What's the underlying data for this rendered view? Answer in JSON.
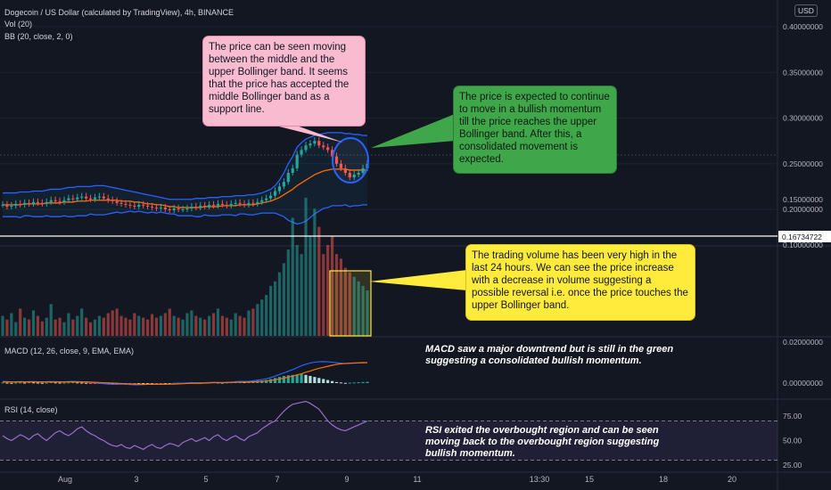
{
  "header": {
    "title": "Dogecoin / US Dollar (calculated by TradingView), 4h, BINANCE",
    "vol_label": "Vol (20)",
    "bb_label": "BB (20, close, 2, 0)",
    "currency": "USD"
  },
  "price_axis": {
    "ticks": [
      "0.40000000",
      "0.35000000",
      "0.30000000",
      "0.25000000",
      "0.20000000"
    ],
    "last_price": "0.16734722"
  },
  "volume_axis": {
    "ticks": [
      "0.15000000",
      "0.10000000"
    ]
  },
  "macd": {
    "label": "MACD (12, 26, close, 9, EMA, EMA)",
    "ticks": [
      "0.02000000",
      "0.00000000"
    ]
  },
  "rsi": {
    "label": "RSI (14, close)",
    "ticks": [
      "75.00",
      "50.00",
      "25.00"
    ]
  },
  "time_axis": [
    "Aug",
    "3",
    "5",
    "7",
    "9",
    "11",
    "13:30",
    "15",
    "18",
    "20"
  ],
  "annotations": {
    "pink": "The price can be seen moving between the middle and the upper Bollinger band. It seems that the price has accepted the middle Bollinger band as a support line.",
    "green": "The price is expected to continue to move in a bullish momentum till the price reaches the upper Bollinger band. After this, a consolidated movement is expected.",
    "yellow": "The trading volume has been very high in the last 24 hours. We can see the price increase with a decrease in volume suggesting a possible reversal i.e. once the price touches the upper Bollinger band.",
    "macd": "MACD saw a major downtrend but is still in the green suggesting a consolidated bullish momentum.",
    "rsi": "RSI exited the overbought region and can be seen moving back to the overbought region suggesting bullish momentum."
  },
  "colors": {
    "up": "#26a69a",
    "down": "#ef5350",
    "bb_upper": "#2962ff",
    "bb_basis": "#ff6d00",
    "rsi_line": "#9c6fc8"
  },
  "chart_data": [
    {
      "type": "candlestick",
      "title": "Dogecoin / US Dollar (calculated by TradingView), 4h, BINANCE",
      "ylim": [
        0.17,
        0.41
      ],
      "x_ticks": [
        "Aug",
        "3",
        "5",
        "7",
        "9",
        "11",
        "13:30",
        "15",
        "18",
        "20"
      ],
      "close": [
        0.205,
        0.203,
        0.204,
        0.206,
        0.205,
        0.207,
        0.206,
        0.208,
        0.207,
        0.206,
        0.208,
        0.21,
        0.209,
        0.208,
        0.21,
        0.212,
        0.211,
        0.213,
        0.214,
        0.212,
        0.211,
        0.213,
        0.214,
        0.212,
        0.21,
        0.209,
        0.207,
        0.206,
        0.205,
        0.204,
        0.203,
        0.205,
        0.204,
        0.203,
        0.202,
        0.201,
        0.202,
        0.2,
        0.199,
        0.201,
        0.2,
        0.2,
        0.201,
        0.203,
        0.202,
        0.204,
        0.203,
        0.205,
        0.204,
        0.206,
        0.205,
        0.204,
        0.206,
        0.207,
        0.206,
        0.205,
        0.207,
        0.206,
        0.208,
        0.21,
        0.212,
        0.215,
        0.22,
        0.225,
        0.23,
        0.24,
        0.245,
        0.26,
        0.265,
        0.27,
        0.272,
        0.275,
        0.27,
        0.268,
        0.265,
        0.258,
        0.25,
        0.245,
        0.24,
        0.235,
        0.238,
        0.24,
        0.245,
        0.25
      ],
      "bb_upper": [
        0.218,
        0.218,
        0.218,
        0.218,
        0.219,
        0.219,
        0.219,
        0.22,
        0.22,
        0.22,
        0.221,
        0.222,
        0.222,
        0.222,
        0.223,
        0.224,
        0.224,
        0.225,
        0.225,
        0.225,
        0.225,
        0.226,
        0.226,
        0.226,
        0.225,
        0.224,
        0.223,
        0.222,
        0.221,
        0.22,
        0.219,
        0.218,
        0.217,
        0.216,
        0.215,
        0.214,
        0.213,
        0.212,
        0.211,
        0.211,
        0.211,
        0.211,
        0.211,
        0.211,
        0.212,
        0.212,
        0.212,
        0.213,
        0.213,
        0.213,
        0.214,
        0.214,
        0.214,
        0.215,
        0.215,
        0.215,
        0.216,
        0.216,
        0.217,
        0.218,
        0.22,
        0.222,
        0.226,
        0.232,
        0.24,
        0.25,
        0.258,
        0.268,
        0.273,
        0.277,
        0.279,
        0.281,
        0.282,
        0.283,
        0.284,
        0.284,
        0.284,
        0.284,
        0.283,
        0.283,
        0.282,
        0.282,
        0.281,
        0.281
      ],
      "bb_basis": [
        0.205,
        0.205,
        0.205,
        0.205,
        0.205,
        0.206,
        0.206,
        0.206,
        0.206,
        0.206,
        0.207,
        0.207,
        0.207,
        0.207,
        0.208,
        0.208,
        0.208,
        0.209,
        0.209,
        0.209,
        0.21,
        0.21,
        0.21,
        0.21,
        0.21,
        0.21,
        0.21,
        0.209,
        0.209,
        0.209,
        0.208,
        0.208,
        0.207,
        0.206,
        0.206,
        0.205,
        0.205,
        0.204,
        0.203,
        0.203,
        0.202,
        0.202,
        0.202,
        0.202,
        0.202,
        0.202,
        0.203,
        0.203,
        0.203,
        0.203,
        0.204,
        0.204,
        0.204,
        0.204,
        0.205,
        0.205,
        0.205,
        0.205,
        0.206,
        0.207,
        0.208,
        0.209,
        0.211,
        0.213,
        0.216,
        0.219,
        0.222,
        0.226,
        0.229,
        0.232,
        0.235,
        0.238,
        0.24,
        0.242,
        0.243,
        0.244,
        0.244,
        0.244,
        0.244,
        0.243,
        0.243,
        0.243,
        0.243,
        0.243
      ],
      "bb_lower": [
        0.192,
        0.192,
        0.192,
        0.192,
        0.191,
        0.193,
        0.193,
        0.192,
        0.192,
        0.192,
        0.193,
        0.192,
        0.192,
        0.192,
        0.193,
        0.192,
        0.192,
        0.193,
        0.193,
        0.193,
        0.195,
        0.194,
        0.194,
        0.194,
        0.195,
        0.196,
        0.197,
        0.196,
        0.197,
        0.198,
        0.197,
        0.198,
        0.197,
        0.196,
        0.197,
        0.196,
        0.197,
        0.196,
        0.195,
        0.195,
        0.193,
        0.193,
        0.193,
        0.193,
        0.192,
        0.192,
        0.194,
        0.193,
        0.193,
        0.193,
        0.194,
        0.194,
        0.194,
        0.193,
        0.195,
        0.195,
        0.194,
        0.194,
        0.195,
        0.196,
        0.196,
        0.196,
        0.196,
        0.194,
        0.192,
        0.188,
        0.186,
        0.184,
        0.185,
        0.187,
        0.191,
        0.195,
        0.198,
        0.201,
        0.202,
        0.204,
        0.204,
        0.204,
        0.205,
        0.203,
        0.204,
        0.204,
        0.205,
        0.205
      ]
    },
    {
      "type": "bar",
      "title": "Vol (20)",
      "ylim": [
        0,
        0.17
      ],
      "values": [
        0.022,
        0.018,
        0.025,
        0.015,
        0.03,
        0.02,
        0.018,
        0.028,
        0.022,
        0.016,
        0.02,
        0.035,
        0.018,
        0.02,
        0.015,
        0.025,
        0.018,
        0.022,
        0.03,
        0.02,
        0.015,
        0.018,
        0.022,
        0.02,
        0.025,
        0.028,
        0.03,
        0.022,
        0.02,
        0.018,
        0.025,
        0.022,
        0.02,
        0.018,
        0.024,
        0.02,
        0.022,
        0.025,
        0.03,
        0.022,
        0.02,
        0.018,
        0.025,
        0.028,
        0.022,
        0.02,
        0.018,
        0.022,
        0.025,
        0.03,
        0.022,
        0.02,
        0.018,
        0.025,
        0.022,
        0.02,
        0.028,
        0.03,
        0.035,
        0.04,
        0.045,
        0.055,
        0.06,
        0.07,
        0.08,
        0.095,
        0.13,
        0.1,
        0.09,
        0.152,
        0.11,
        0.14,
        0.12,
        0.09,
        0.1,
        0.11,
        0.09,
        0.085,
        0.075,
        0.07,
        0.065,
        0.06,
        0.055,
        0.05
      ]
    },
    {
      "type": "bar",
      "title": "MACD (12, 26, close, 9, EMA, EMA)",
      "ylim": [
        -0.003,
        0.02
      ],
      "values": [
        0.0003,
        0.0002,
        0.0001,
        0.0002,
        0.0003,
        0.0002,
        0.0004,
        0.0003,
        0.0002,
        0.0001,
        0.0002,
        0.0004,
        0.0003,
        0.0002,
        0.0002,
        0.0003,
        0.0004,
        0.0003,
        0.0002,
        0.0001,
        -0.0001,
        -0.0002,
        -0.0003,
        -0.0004,
        -0.0005,
        -0.0004,
        -0.0003,
        -0.0002,
        -0.0003,
        -0.0004,
        -0.0005,
        -0.0004,
        -0.0003,
        -0.0002,
        -0.0001,
        -0.0002,
        -0.0003,
        -0.0002,
        -0.0001,
        0.0001,
        0.0002,
        0.0001,
        0.0002,
        0.0003,
        0.0002,
        0.0001,
        0.0002,
        0.0003,
        0.0004,
        0.0003,
        0.0002,
        0.0003,
        0.0004,
        0.0005,
        0.0006,
        0.0005,
        0.0006,
        0.0008,
        0.001,
        0.0012,
        0.0015,
        0.002,
        0.0025,
        0.003,
        0.0035,
        0.0038,
        0.004,
        0.0042,
        0.0045,
        0.004,
        0.0035,
        0.003,
        0.0025,
        0.002,
        0.0015,
        0.001,
        0.0005,
        0.0003,
        0.0001,
        0.0002,
        0.0003,
        0.0004,
        0.0005,
        0.0006
      ],
      "macd_line": [
        0.0008,
        0.0007,
        0.0006,
        0.0006,
        0.0007,
        0.0006,
        0.0007,
        0.0007,
        0.0006,
        0.0005,
        0.0006,
        0.0007,
        0.0007,
        0.0006,
        0.0006,
        0.0007,
        0.0008,
        0.0007,
        0.0006,
        0.0005,
        0.0003,
        0.0001,
        -0.0001,
        -0.0003,
        -0.0005,
        -0.0006,
        -0.0006,
        -0.0005,
        -0.0006,
        -0.0007,
        -0.0008,
        -0.0008,
        -0.0007,
        -0.0006,
        -0.0005,
        -0.0005,
        -0.0006,
        -0.0005,
        -0.0004,
        -0.0002,
        -0.0001,
        -0.0001,
        0.0001,
        0.0002,
        0.0002,
        0.0001,
        0.0002,
        0.0003,
        0.0004,
        0.0004,
        0.0003,
        0.0004,
        0.0005,
        0.0007,
        0.0008,
        0.0008,
        0.0009,
        0.0011,
        0.0014,
        0.0017,
        0.0021,
        0.0027,
        0.0034,
        0.0042,
        0.005,
        0.0058,
        0.0066,
        0.0075,
        0.0085,
        0.0092,
        0.0098,
        0.0102,
        0.0104,
        0.0105,
        0.0104,
        0.0102,
        0.0099,
        0.0097,
        0.0095,
        0.0096,
        0.0097,
        0.0098,
        0.0099,
        0.01
      ],
      "signal_line": [
        0.0006,
        0.0006,
        0.0006,
        0.0006,
        0.0006,
        0.0006,
        0.0006,
        0.0006,
        0.0006,
        0.0006,
        0.0006,
        0.0006,
        0.0006,
        0.0006,
        0.0006,
        0.0006,
        0.0006,
        0.0006,
        0.0006,
        0.0006,
        0.0005,
        0.0004,
        0.0003,
        0.0002,
        0.0001,
        0.0,
        -0.0001,
        -0.0002,
        -0.0003,
        -0.0004,
        -0.0005,
        -0.0005,
        -0.0006,
        -0.0006,
        -0.0006,
        -0.0006,
        -0.0006,
        -0.0006,
        -0.0005,
        -0.0005,
        -0.0004,
        -0.0003,
        -0.0002,
        -0.0001,
        -0.0001,
        0.0,
        0.0,
        0.0001,
        0.0002,
        0.0002,
        0.0002,
        0.0003,
        0.0003,
        0.0004,
        0.0004,
        0.0005,
        0.0005,
        0.0006,
        0.0007,
        0.0009,
        0.001,
        0.0013,
        0.0016,
        0.002,
        0.0024,
        0.0029,
        0.0034,
        0.004,
        0.0046,
        0.0053,
        0.0059,
        0.0066,
        0.0072,
        0.0077,
        0.0082,
        0.0087,
        0.0091,
        0.0094,
        0.0096,
        0.0097,
        0.0098,
        0.0099,
        0.01,
        0.01
      ]
    },
    {
      "type": "line",
      "title": "RSI (14, close)",
      "ylim": [
        25,
        100
      ],
      "y_ticks": [
        "75.00",
        "50.00",
        "25.00"
      ],
      "values": [
        55,
        52,
        50,
        53,
        56,
        54,
        51,
        55,
        57,
        53,
        50,
        54,
        58,
        60,
        57,
        55,
        58,
        62,
        64,
        60,
        57,
        55,
        52,
        50,
        47,
        45,
        44,
        46,
        43,
        42,
        45,
        43,
        41,
        44,
        46,
        43,
        42,
        45,
        47,
        46,
        44,
        48,
        50,
        52,
        49,
        51,
        53,
        50,
        54,
        56,
        52,
        50,
        53,
        55,
        52,
        50,
        54,
        56,
        58,
        62,
        65,
        68,
        70,
        75,
        80,
        84,
        87,
        88,
        89,
        90,
        88,
        85,
        82,
        76,
        70,
        66,
        63,
        61,
        60,
        62,
        64,
        66,
        68,
        70
      ]
    }
  ]
}
